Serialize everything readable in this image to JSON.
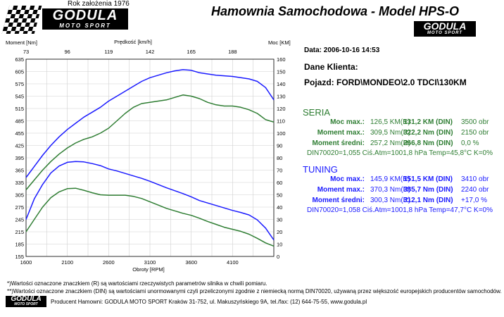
{
  "header": {
    "founded": "Rok założenia 1976",
    "logo_main": "GODULA",
    "logo_sub": "MOTO SPORT",
    "title": "Hamownia Samochodowa   -   Model HPS-O"
  },
  "info": {
    "date": "Data: 2006-10-16  14:53",
    "client_label": "Dane Klienta:",
    "vehicle": "Pojazd: FORD\\MONDEO\\2.0 TDCI\\130KM"
  },
  "seria": {
    "heading": "SERIA",
    "rows": [
      {
        "label": "Moc max.:",
        "value": "126,5 KM(R)",
        "din": "131,2 KM (DIN)",
        "extra": "3500 obr"
      },
      {
        "label": "Moment max.:",
        "value": "309,5 Nm(R)",
        "din": "322,2 Nm (DIN)",
        "extra": "2150 obr"
      },
      {
        "label": "Moment średni:",
        "value": "257,2 Nm(R)",
        "din": "266,8 Nm (DIN)",
        "extra": "0,0 %"
      }
    ],
    "din_line": "DIN70020=1,055    Ciś.Atm=1001,8 hPa    Temp=45,8°C   K=0%"
  },
  "tuning": {
    "heading": "TUNING",
    "rows": [
      {
        "label": "Moc max.:",
        "value": "145,9 KM(R)",
        "din": "151,5 KM (DIN)",
        "extra": "3410 obr"
      },
      {
        "label": "Moment max.:",
        "value": "370,3 Nm(R)",
        "din": "385,7 Nm (DIN)",
        "extra": "2240 obr"
      },
      {
        "label": "Moment średni:",
        "value": "300,3 Nm(R)",
        "din": "312,1 Nm (DIN)",
        "extra": "+17,0 %"
      }
    ],
    "din_line": "DIN70020=1,058    Ciś.Atm=1001,8 hPa    Temp=47,7°C   K=0%"
  },
  "footer": {
    "note1": "*)Wartości oznaczone znaczkiem (R) są wartościami rzeczywistych parametrów silnika w chwili pomiaru.",
    "note2": "**)Wartości oznaczone znaczkiem (DIN) są wartościami unormowanymi czyli przeliczonymi zgodnie z niemiecką normą DIN70020, używaną przez większość europejskich producentów samochodów.",
    "producer": "Producent Hamowni: GODULA MOTO SPORT Kraków 31-752, ul. Makuszyńskiego 9A, tel./fax: (12) 644-75-55, www.godula.pl"
  },
  "colors": {
    "seria": "#2e7d32",
    "tuning": "#1a1aff",
    "grid": "#d0d0d0"
  },
  "chart_data": {
    "type": "line",
    "xlabel": "Obroty [RPM]",
    "ylabel_left": "Moment [Nm]",
    "ylabel_right": "Moc [KM]",
    "x2label": "Prędkość [km/h]",
    "xlim": [
      1600,
      4600
    ],
    "ylim_left": [
      155,
      635
    ],
    "ylim_right": [
      0,
      160
    ],
    "x_ticks": [
      1600,
      2100,
      2600,
      3100,
      3600,
      4100
    ],
    "x2_ticks": [
      "73",
      "96",
      "119",
      "142",
      "165",
      "188"
    ],
    "y_left_ticks": [
      155,
      185,
      215,
      245,
      275,
      305,
      335,
      365,
      395,
      425,
      455,
      485,
      515,
      545,
      575,
      605,
      635
    ],
    "y_right_ticks": [
      0,
      10,
      20,
      30,
      40,
      50,
      60,
      70,
      80,
      90,
      100,
      110,
      120,
      130,
      140,
      150,
      160
    ],
    "series": [
      {
        "name": "TUNING",
        "axis": "right",
        "x": [
          1600,
          1700,
          1800,
          1900,
          2000,
          2100,
          2200,
          2300,
          2400,
          2500,
          2600,
          2700,
          2800,
          2900,
          3000,
          3100,
          3200,
          3300,
          3400,
          3500,
          3600,
          3700,
          3800,
          3900,
          4000,
          4100,
          4200,
          4300,
          4400,
          4500,
          4600
        ],
        "y": [
          64,
          73,
          82,
          90,
          97,
          103,
          108,
          113,
          117,
          121,
          126,
          130,
          134,
          138,
          142,
          145,
          147,
          149,
          150.5,
          151.5,
          151,
          149,
          148,
          147,
          146.5,
          146,
          145,
          144,
          142,
          137,
          127
        ]
      },
      {
        "name": "SERIA",
        "axis": "right",
        "x": [
          1600,
          1700,
          1800,
          1900,
          2000,
          2100,
          2200,
          2300,
          2400,
          2500,
          2600,
          2700,
          2800,
          2900,
          3000,
          3100,
          3200,
          3300,
          3400,
          3500,
          3600,
          3700,
          3800,
          3900,
          4000,
          4100,
          4200,
          4300,
          4400,
          4500,
          4600
        ],
        "y": [
          54,
          62,
          70,
          77,
          83,
          88,
          92,
          95,
          97,
          100,
          104,
          110,
          116,
          121,
          124,
          125,
          126,
          127,
          129,
          131,
          130,
          128,
          125,
          123,
          122,
          122,
          121,
          119,
          116,
          111,
          109
        ]
      },
      {
        "name": "TUNING",
        "axis": "left",
        "x": [
          1600,
          1700,
          1800,
          1900,
          2000,
          2100,
          2200,
          2300,
          2400,
          2500,
          2600,
          2700,
          2800,
          2900,
          3000,
          3100,
          3200,
          3300,
          3400,
          3500,
          3600,
          3700,
          3800,
          3900,
          4000,
          4100,
          4200,
          4300,
          4400,
          4500,
          4600
        ],
        "y": [
          245,
          295,
          330,
          358,
          375,
          384,
          386,
          385,
          381,
          376,
          368,
          363,
          357,
          351,
          345,
          338,
          330,
          322,
          315,
          308,
          300,
          291,
          285,
          279,
          273,
          267,
          262,
          256,
          244,
          224,
          195
        ]
      },
      {
        "name": "SERIA",
        "axis": "left",
        "x": [
          1600,
          1700,
          1800,
          1900,
          2000,
          2100,
          2200,
          2300,
          2400,
          2500,
          2600,
          2700,
          2800,
          2900,
          3000,
          3100,
          3200,
          3300,
          3400,
          3500,
          3600,
          3700,
          3800,
          3900,
          4000,
          4100,
          4200,
          4300,
          4400,
          4500,
          4600
        ],
        "y": [
          215,
          245,
          275,
          298,
          312,
          320,
          321,
          316,
          310,
          305,
          304,
          304,
          304,
          301,
          296,
          288,
          280,
          272,
          266,
          260,
          255,
          248,
          240,
          233,
          226,
          221,
          216,
          209,
          199,
          188,
          180
        ]
      }
    ]
  }
}
